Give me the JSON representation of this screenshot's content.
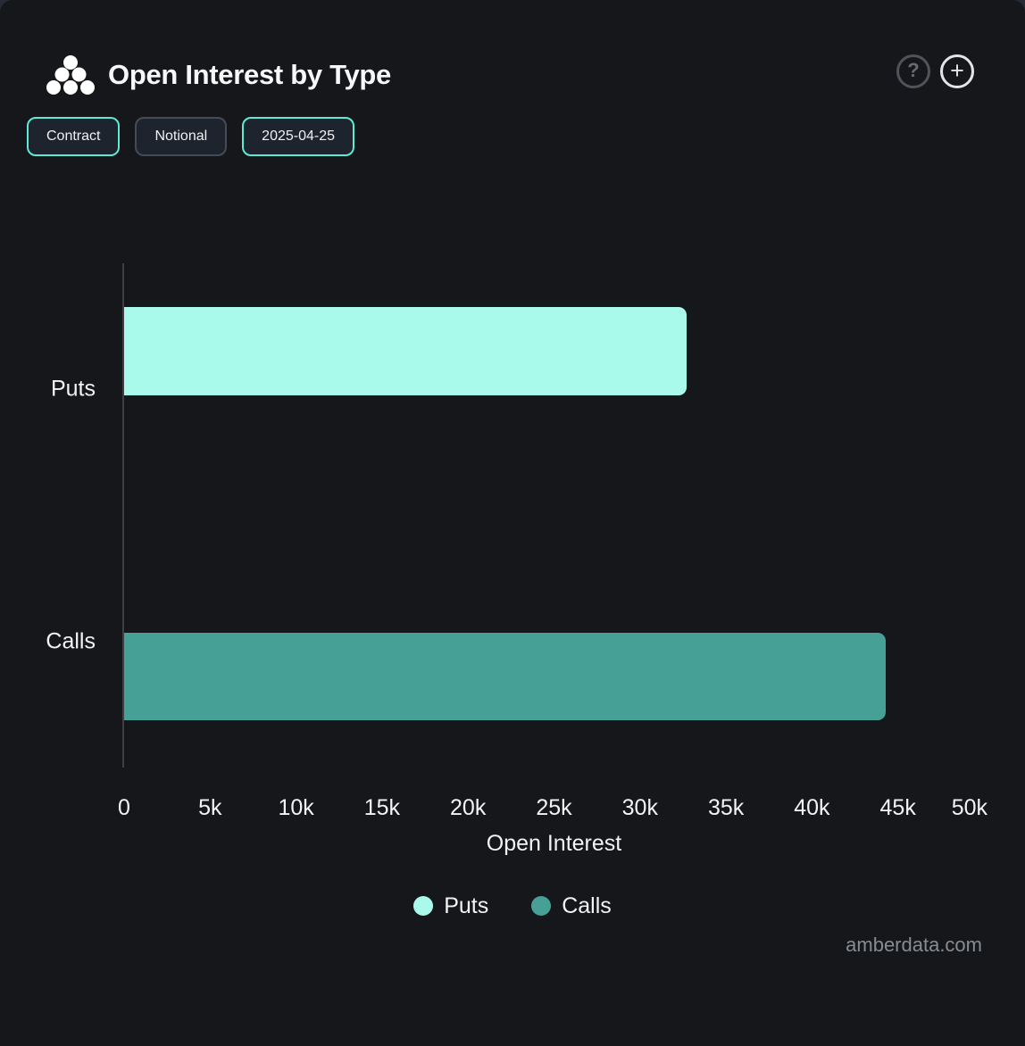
{
  "header": {
    "title": "Open Interest by Type",
    "help_icon": "?",
    "add_icon": "+"
  },
  "toolbar": {
    "buttons": [
      {
        "label": "Contract",
        "style": "accent"
      },
      {
        "label": "Notional",
        "style": "default"
      },
      {
        "label": "2025-04-25",
        "style": "accent"
      }
    ]
  },
  "chart_data": {
    "type": "bar",
    "orientation": "horizontal",
    "title": "Open Interest by Type",
    "categories": [
      "Puts",
      "Calls"
    ],
    "series": [
      {
        "name": "Puts",
        "value": 32700,
        "color": "#aafaec"
      },
      {
        "name": "Calls",
        "value": 44300,
        "color": "#47a096"
      }
    ],
    "xlabel": "Open Interest",
    "xlim": [
      0,
      50000
    ],
    "xticks": [
      "0",
      "5k",
      "10k",
      "15k",
      "20k",
      "25k",
      "30k",
      "35k",
      "40k",
      "45k",
      "50k"
    ],
    "grid": false,
    "legend_position": "bottom",
    "legend": [
      {
        "label": "Puts",
        "color": "#aafaec"
      },
      {
        "label": "Calls",
        "color": "#47a096"
      }
    ]
  },
  "footer": {
    "watermark": "amberdata.com"
  },
  "colors": {
    "card_bg": "#16171a",
    "accent_border": "#5eead4",
    "axis_line": "#3c4045",
    "puts": "#aafaec",
    "calls": "#47a096"
  }
}
